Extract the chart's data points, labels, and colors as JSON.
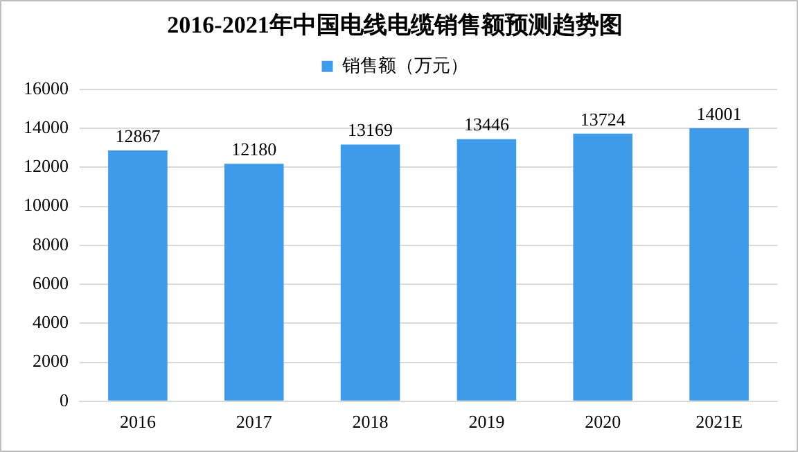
{
  "chart_data": {
    "type": "bar",
    "title": "2016-2021年中国电线电缆销售额预测趋势图",
    "categories": [
      "2016",
      "2017",
      "2018",
      "2019",
      "2020",
      "2021E"
    ],
    "series": [
      {
        "name": "销售额（万元）",
        "color": "#3d9be9",
        "values": [
          12867,
          12180,
          13169,
          13446,
          13724,
          14001
        ]
      }
    ],
    "ylim": [
      0,
      16000
    ],
    "yticks": [
      0,
      2000,
      4000,
      6000,
      8000,
      10000,
      12000,
      14000,
      16000
    ],
    "grid": "y",
    "legend": "top",
    "data_labels": true
  }
}
